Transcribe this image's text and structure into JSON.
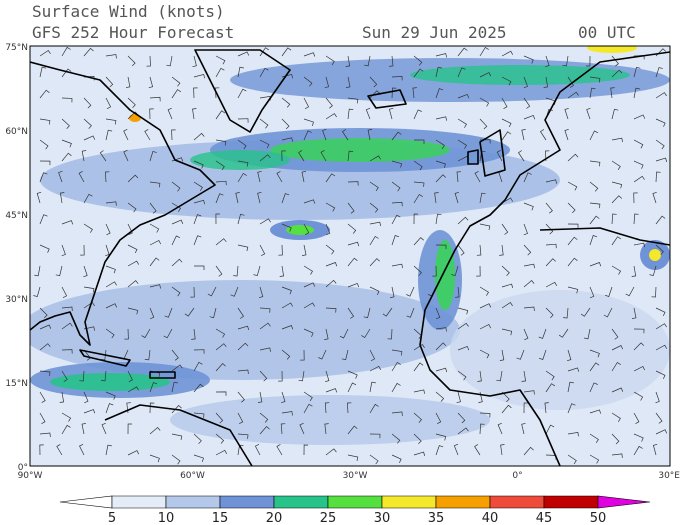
{
  "header": {
    "title": "Surface Wind (knots)",
    "subtitle": "GFS 252 Hour Forecast",
    "date": "Sun 29 Jun 2025",
    "time": "00 UTC"
  },
  "map": {
    "lat_labels": [
      "75°N",
      "60°N",
      "45°N",
      "30°N",
      "15°N",
      "0°"
    ],
    "lon_labels": [
      "90°W",
      "60°W",
      "30°W",
      "0°",
      "30°E"
    ]
  },
  "colorbar": {
    "labels": [
      5,
      10,
      15,
      20,
      25,
      30,
      35,
      40,
      45,
      50
    ],
    "colors": [
      "#ffffff",
      "#e4ecf8",
      "#b4c8ea",
      "#6f93d6",
      "#27c389",
      "#55e040",
      "#f5e82a",
      "#f5a000",
      "#ee4b3a",
      "#c00000",
      "#e000e0"
    ]
  }
}
